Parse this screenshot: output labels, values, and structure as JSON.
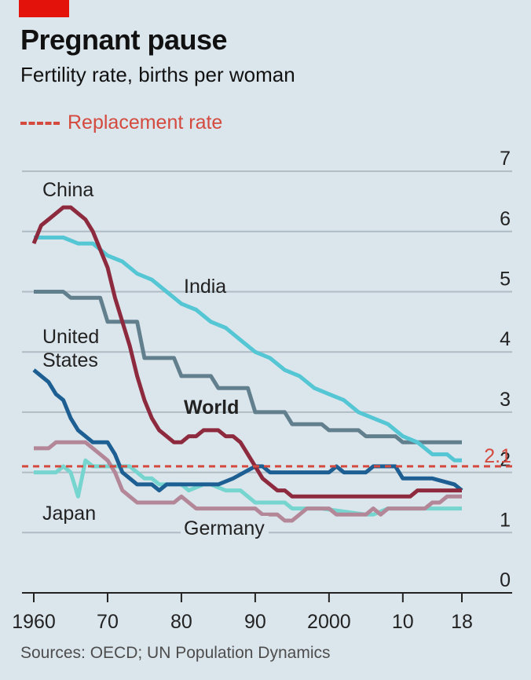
{
  "header": {
    "title": "Pregnant pause",
    "subtitle": "Fertility rate, births per woman"
  },
  "legend": {
    "label": "Replacement rate"
  },
  "source": "Sources: OECD; UN Population Dynamics",
  "colors": {
    "China": "#8d2a3e",
    "India": "#55c6d4",
    "World": "#627f8e",
    "United States": "#1d5f92",
    "Japan": "#76d5cf",
    "Germany": "#b38797",
    "replacement": "#d44a3e",
    "background": "#dbe5ec",
    "grid": "#b0bcc4",
    "accent": "#e3120b"
  },
  "chart_data": {
    "type": "line",
    "title": "Pregnant pause",
    "subtitle": "Fertility rate, births per woman",
    "ylabel": "",
    "xlabel": "",
    "ylim": [
      0,
      7
    ],
    "xlim": [
      1960,
      2018
    ],
    "y_ticks": [
      "0",
      "1",
      "2",
      "3",
      "4",
      "5",
      "6",
      "7"
    ],
    "x_ticks": [
      {
        "value": 1960,
        "label": "1960"
      },
      {
        "value": 1970,
        "label": "70"
      },
      {
        "value": 1980,
        "label": "80"
      },
      {
        "value": 1990,
        "label": "90"
      },
      {
        "value": 2000,
        "label": "2000"
      },
      {
        "value": 2010,
        "label": "10"
      },
      {
        "value": 2018,
        "label": "18"
      }
    ],
    "grid": true,
    "reference_line": {
      "name": "Replacement rate",
      "value": 2.1,
      "label": "2.1"
    },
    "series": [
      {
        "name": "China",
        "label": "China",
        "x": [
          1960,
          1961,
          1962,
          1963,
          1964,
          1965,
          1966,
          1967,
          1968,
          1969,
          1970,
          1971,
          1972,
          1973,
          1974,
          1975,
          1976,
          1977,
          1978,
          1979,
          1980,
          1981,
          1982,
          1983,
          1984,
          1985,
          1986,
          1987,
          1988,
          1989,
          1990,
          1991,
          1992,
          1993,
          1994,
          1995,
          1996,
          2000,
          2005,
          2010,
          2011,
          2012,
          2013,
          2014,
          2015,
          2016,
          2017,
          2018
        ],
        "y": [
          5.8,
          6.1,
          6.2,
          6.3,
          6.4,
          6.4,
          6.3,
          6.2,
          6.0,
          5.7,
          5.4,
          4.9,
          4.5,
          4.1,
          3.6,
          3.2,
          2.9,
          2.7,
          2.6,
          2.5,
          2.5,
          2.6,
          2.6,
          2.7,
          2.7,
          2.7,
          2.6,
          2.6,
          2.5,
          2.3,
          2.1,
          1.9,
          1.8,
          1.7,
          1.7,
          1.6,
          1.6,
          1.6,
          1.6,
          1.6,
          1.6,
          1.7,
          1.7,
          1.7,
          1.7,
          1.7,
          1.7,
          1.7
        ]
      },
      {
        "name": "India",
        "label": "India",
        "x": [
          1960,
          1964,
          1966,
          1968,
          1970,
          1972,
          1974,
          1976,
          1978,
          1980,
          1982,
          1984,
          1986,
          1988,
          1990,
          1992,
          1994,
          1996,
          1998,
          2000,
          2002,
          2004,
          2006,
          2008,
          2010,
          2012,
          2014,
          2016,
          2017,
          2018
        ],
        "y": [
          5.9,
          5.9,
          5.8,
          5.8,
          5.6,
          5.5,
          5.3,
          5.2,
          5.0,
          4.8,
          4.7,
          4.5,
          4.4,
          4.2,
          4.0,
          3.9,
          3.7,
          3.6,
          3.4,
          3.3,
          3.2,
          3.0,
          2.9,
          2.8,
          2.6,
          2.5,
          2.3,
          2.3,
          2.2,
          2.2
        ]
      },
      {
        "name": "World",
        "label": "World",
        "x": [
          1960,
          1964,
          1965,
          1969,
          1970,
          1974,
          1975,
          1979,
          1980,
          1984,
          1985,
          1989,
          1990,
          1994,
          1995,
          1999,
          2000,
          2004,
          2005,
          2009,
          2010,
          2014,
          2015,
          2018
        ],
        "y": [
          5.0,
          5.0,
          4.9,
          4.9,
          4.5,
          4.5,
          3.9,
          3.9,
          3.6,
          3.6,
          3.4,
          3.4,
          3.0,
          3.0,
          2.8,
          2.8,
          2.7,
          2.7,
          2.6,
          2.6,
          2.5,
          2.5,
          2.5,
          2.5
        ]
      },
      {
        "name": "United States",
        "label": "United States",
        "x": [
          1960,
          1962,
          1963,
          1964,
          1965,
          1966,
          1967,
          1968,
          1970,
          1971,
          1972,
          1974,
          1976,
          1977,
          1978,
          1985,
          1987,
          1990,
          1991,
          1992,
          1993,
          2000,
          2001,
          2002,
          2005,
          2006,
          2007,
          2009,
          2010,
          2011,
          2014,
          2017,
          2018
        ],
        "y": [
          3.7,
          3.5,
          3.3,
          3.2,
          2.9,
          2.7,
          2.6,
          2.5,
          2.5,
          2.3,
          2.0,
          1.8,
          1.8,
          1.7,
          1.8,
          1.8,
          1.9,
          2.1,
          2.1,
          2.0,
          2.0,
          2.0,
          2.1,
          2.0,
          2.0,
          2.1,
          2.1,
          2.1,
          1.9,
          1.9,
          1.9,
          1.8,
          1.7
        ]
      },
      {
        "name": "Japan",
        "label": "Japan",
        "x": [
          1960,
          1963,
          1964,
          1965,
          1966,
          1967,
          1968,
          1969,
          1970,
          1971,
          1973,
          1974,
          1975,
          1976,
          1977,
          1980,
          1981,
          1983,
          1984,
          1986,
          1988,
          1989,
          1990,
          1991,
          1993,
          1994,
          1995,
          1997,
          1998,
          1999,
          2005,
          2006,
          2008,
          2012,
          2014,
          2016,
          2018
        ],
        "y": [
          2.0,
          2.0,
          2.1,
          2.0,
          1.6,
          2.2,
          2.1,
          2.1,
          2.1,
          2.1,
          2.1,
          2.0,
          1.9,
          1.9,
          1.8,
          1.8,
          1.7,
          1.8,
          1.8,
          1.7,
          1.7,
          1.6,
          1.5,
          1.5,
          1.5,
          1.5,
          1.4,
          1.4,
          1.4,
          1.4,
          1.3,
          1.3,
          1.4,
          1.4,
          1.4,
          1.4,
          1.4
        ]
      },
      {
        "name": "Germany",
        "label": "Germany",
        "x": [
          1960,
          1962,
          1963,
          1967,
          1968,
          1970,
          1971,
          1972,
          1973,
          1974,
          1975,
          1979,
          1980,
          1981,
          1982,
          1984,
          1985,
          1990,
          1991,
          1992,
          1993,
          1994,
          1995,
          1996,
          1997,
          1998,
          2000,
          2001,
          2002,
          2005,
          2006,
          2007,
          2008,
          2012,
          2013,
          2014,
          2015,
          2016,
          2018
        ],
        "y": [
          2.4,
          2.4,
          2.5,
          2.5,
          2.4,
          2.2,
          2.0,
          1.7,
          1.6,
          1.5,
          1.5,
          1.5,
          1.6,
          1.5,
          1.4,
          1.4,
          1.4,
          1.4,
          1.3,
          1.3,
          1.3,
          1.2,
          1.2,
          1.3,
          1.4,
          1.4,
          1.4,
          1.3,
          1.3,
          1.3,
          1.4,
          1.3,
          1.4,
          1.4,
          1.4,
          1.5,
          1.5,
          1.6,
          1.6
        ]
      }
    ],
    "annotations": [
      {
        "series": "China",
        "text": "China"
      },
      {
        "series": "India",
        "text": "India"
      },
      {
        "series": "World",
        "text": "World"
      },
      {
        "series": "United States",
        "text": "United States"
      },
      {
        "series": "Japan",
        "text": "Japan"
      },
      {
        "series": "Germany",
        "text": "Germany"
      }
    ]
  }
}
